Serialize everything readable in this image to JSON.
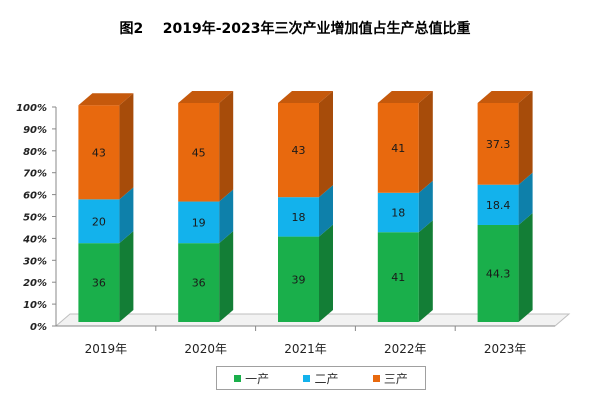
{
  "colors": {
    "primary": "#1aaf4b",
    "secondary": "#13b2ec",
    "tertiary": "#e8690e"
  },
  "chart_data": {
    "type": "bar",
    "stacked": true,
    "percent_stacked": true,
    "title": "图2    2019年-2023年三次产业增加值占生产总值比重",
    "categories": [
      "2019年",
      "2020年",
      "2021年",
      "2022年",
      "2023年"
    ],
    "yticks": [
      "0%",
      "10%",
      "20%",
      "30%",
      "40%",
      "50%",
      "60%",
      "70%",
      "80%",
      "90%",
      "100%"
    ],
    "ylim": [
      0,
      100
    ],
    "legend_position": "bottom",
    "series": [
      {
        "name": "一产",
        "values": [
          36,
          36,
          39,
          41,
          44.3
        ],
        "labels": [
          "36",
          "36",
          "39",
          "41",
          "44.3"
        ]
      },
      {
        "name": "二产",
        "values": [
          20,
          19,
          18,
          18,
          18.4
        ],
        "labels": [
          "20",
          "19",
          "18",
          "18",
          "18.4"
        ]
      },
      {
        "name": "三产",
        "values": [
          43,
          45,
          43,
          41,
          37.3
        ],
        "labels": [
          "43",
          "45",
          "43",
          "41",
          "37.3"
        ]
      }
    ]
  }
}
